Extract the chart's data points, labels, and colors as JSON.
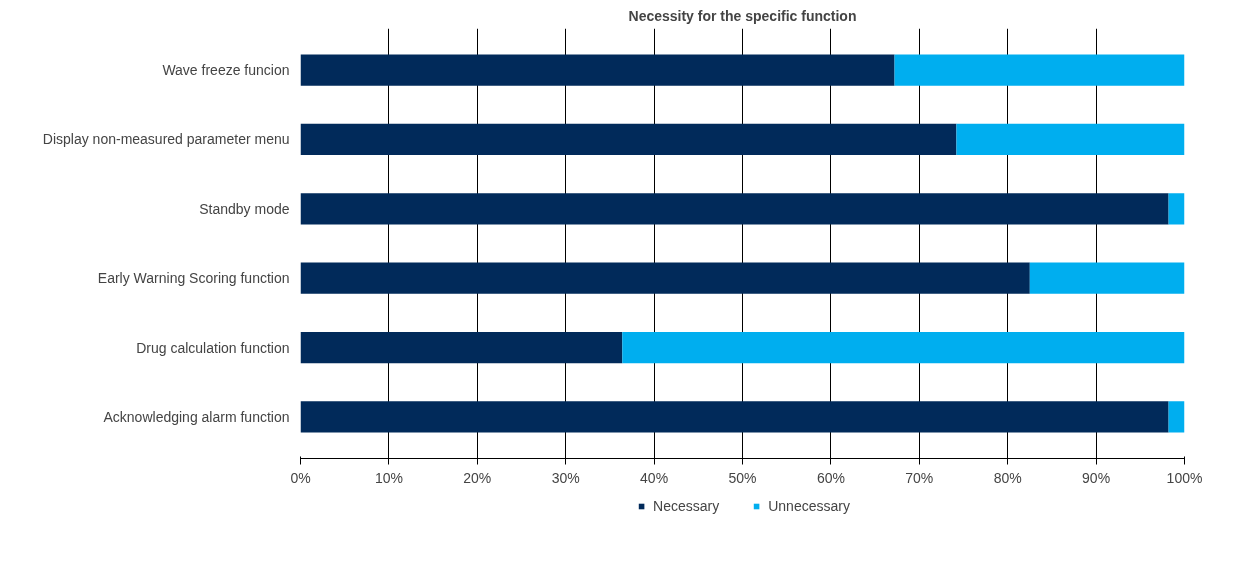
{
  "chart_data": {
    "type": "bar",
    "orientation": "horizontal",
    "stacked": true,
    "title": "Necessity for the specific function",
    "categories": [
      "Wave freeze funcion",
      "Display non-measured parameter menu",
      "Standby mode",
      "Early Warning Scoring function",
      "Drug calculation function",
      "Acknowledging alarm function"
    ],
    "series": [
      {
        "name": "Necessary",
        "color": "#012a5a",
        "values": [
          67.2,
          74.2,
          98.2,
          82.5,
          36.4,
          98.2
        ]
      },
      {
        "name": "Unnecessary",
        "color": "#00aeef",
        "values": [
          32.8,
          25.8,
          1.8,
          17.5,
          63.6,
          1.8
        ]
      }
    ],
    "xlim": [
      0,
      100
    ],
    "xticks": [
      {
        "value": 0,
        "label": "0%"
      },
      {
        "value": 10,
        "label": "10%"
      },
      {
        "value": 20,
        "label": "20%"
      },
      {
        "value": 30,
        "label": "30%"
      },
      {
        "value": 40,
        "label": "40%"
      },
      {
        "value": 50,
        "label": "50%"
      },
      {
        "value": 60,
        "label": "60%"
      },
      {
        "value": 70,
        "label": "70%"
      },
      {
        "value": 80,
        "label": "80%"
      },
      {
        "value": 90,
        "label": "90%"
      },
      {
        "value": 100,
        "label": "100%"
      }
    ],
    "grid": "x",
    "legend": "bottom"
  }
}
